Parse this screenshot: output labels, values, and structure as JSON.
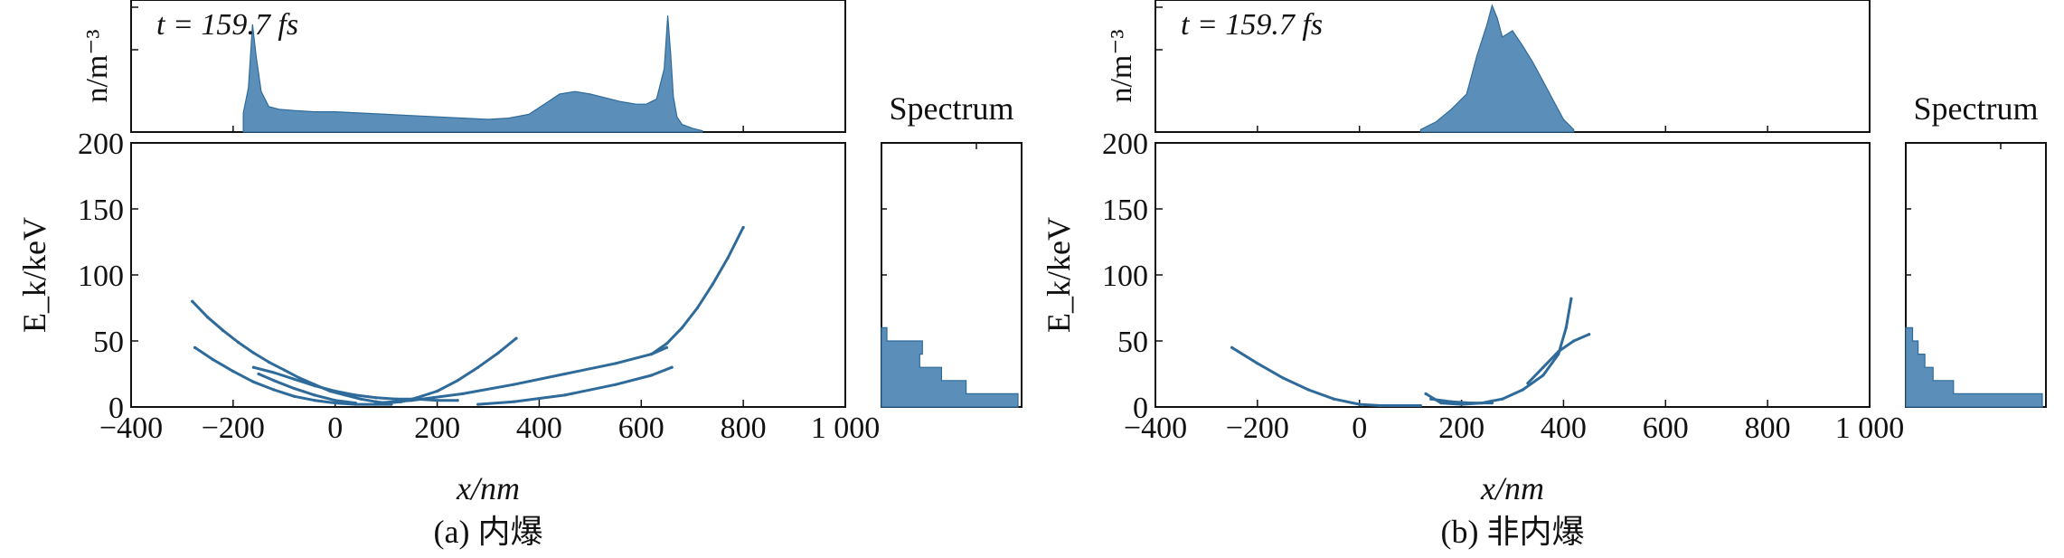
{
  "panels": [
    {
      "id": "a",
      "time_label": "t = 159.7 fs",
      "density_ylabel": "n/m⁻³",
      "energy_ylabel": "E_k/keV",
      "xlabel": "x/nm",
      "spectrum_label": "Spectrum",
      "caption": "(a) 内爆",
      "xlim": [
        -400,
        1000
      ],
      "x_ticks": [
        "−400",
        "−200",
        "0",
        "200",
        "400",
        "600",
        "800",
        "1 000"
      ],
      "ylim": [
        0,
        200
      ],
      "y_ticks": [
        "0",
        "50",
        "100",
        "150",
        "200"
      ]
    },
    {
      "id": "b",
      "time_label": "t = 159.7 fs",
      "density_ylabel": "n/m⁻³",
      "energy_ylabel": "E_k/keV",
      "xlabel": "x/nm",
      "spectrum_label": "Spectrum",
      "caption": "(b) 非内爆",
      "xlim": [
        -400,
        1000
      ],
      "x_ticks": [
        "−400",
        "−200",
        "0",
        "200",
        "400",
        "600",
        "800",
        "1 000"
      ],
      "ylim": [
        0,
        200
      ],
      "y_ticks": [
        "0",
        "50",
        "100",
        "150",
        "200"
      ]
    }
  ],
  "chart_data": [
    {
      "panel": "a",
      "type": "scatter",
      "xlim": [
        -400,
        1000
      ],
      "ylim": [
        0,
        200
      ],
      "series": [
        {
          "x": [
            -280,
            -250,
            -220,
            -190,
            -160,
            -130,
            -100,
            -70,
            -40,
            -10,
            20,
            50,
            80,
            100,
            130,
            160,
            200,
            240,
            280,
            320,
            355
          ],
          "y": [
            80,
            68,
            58,
            49,
            41,
            34,
            28,
            22,
            17,
            12,
            9,
            6,
            4,
            3,
            4,
            7,
            12,
            20,
            30,
            41,
            52
          ]
        },
        {
          "x": [
            -275,
            -240,
            -200,
            -160,
            -120,
            -80,
            -40,
            0,
            40,
            80,
            110
          ],
          "y": [
            45,
            36,
            27,
            19,
            13,
            8,
            5,
            3,
            2,
            2,
            2
          ]
        },
        {
          "x": [
            -160,
            -120,
            -80,
            -40,
            0,
            40,
            80,
            120,
            160,
            200,
            240
          ],
          "y": [
            30,
            26,
            21,
            16,
            12,
            9,
            7,
            6,
            6,
            5,
            5
          ]
        },
        {
          "x": [
            -150,
            -120,
            -80,
            -40,
            0,
            40
          ],
          "y": [
            25,
            20,
            14,
            9,
            5,
            3
          ]
        },
        {
          "x": [
            80,
            150,
            250,
            350,
            450,
            550,
            620,
            650
          ],
          "y": [
            3,
            5,
            10,
            17,
            25,
            33,
            40,
            45
          ]
        },
        {
          "x": [
            280,
            350,
            450,
            550,
            620,
            660
          ],
          "y": [
            2,
            4,
            9,
            17,
            24,
            30
          ]
        },
        {
          "x": [
            620,
            650,
            680,
            710,
            740,
            770,
            800
          ],
          "y": [
            40,
            48,
            60,
            75,
            93,
            113,
            136
          ]
        }
      ],
      "density_profile": {
        "x": [
          -180,
          -170,
          -162,
          -155,
          -145,
          -130,
          -110,
          -80,
          -40,
          0,
          50,
          100,
          150,
          200,
          250,
          300,
          340,
          380,
          410,
          440,
          470,
          500,
          530,
          560,
          590,
          610,
          630,
          645,
          652,
          658,
          663,
          670,
          680,
          700,
          720
        ],
        "y": [
          0.15,
          0.35,
          0.85,
          0.6,
          0.32,
          0.2,
          0.18,
          0.17,
          0.16,
          0.16,
          0.15,
          0.14,
          0.13,
          0.12,
          0.11,
          0.1,
          0.11,
          0.14,
          0.22,
          0.3,
          0.32,
          0.3,
          0.27,
          0.24,
          0.22,
          0.22,
          0.26,
          0.5,
          0.92,
          0.6,
          0.28,
          0.12,
          0.06,
          0.03,
          0.01
        ]
      },
      "spectrum": {
        "bins": [
          0,
          10,
          20,
          30,
          40,
          50,
          60
        ],
        "counts": [
          1.0,
          0.62,
          0.44,
          0.28,
          0.3,
          0.04
        ]
      }
    },
    {
      "panel": "b",
      "type": "scatter",
      "xlim": [
        -400,
        1000
      ],
      "ylim": [
        0,
        200
      ],
      "series": [
        {
          "x": [
            -250,
            -200,
            -150,
            -100,
            -50,
            0,
            40,
            80,
            120
          ],
          "y": [
            45,
            33,
            22,
            13,
            6,
            2,
            1,
            1,
            1
          ]
        },
        {
          "x": [
            130,
            160,
            200,
            240,
            280,
            320,
            360,
            390,
            405,
            415
          ],
          "y": [
            10,
            3,
            2,
            3,
            6,
            13,
            24,
            40,
            60,
            82
          ]
        },
        {
          "x": [
            330,
            360,
            390,
            420,
            450
          ],
          "y": [
            18,
            30,
            42,
            50,
            55
          ]
        },
        {
          "x": [
            140,
            180,
            220,
            260
          ],
          "y": [
            6,
            4,
            3,
            3
          ]
        }
      ],
      "density_profile": {
        "x": [
          120,
          150,
          180,
          210,
          230,
          250,
          260,
          270,
          280,
          300,
          320,
          340,
          360,
          380,
          400,
          420
        ],
        "y": [
          0.02,
          0.08,
          0.18,
          0.3,
          0.6,
          0.85,
          1.0,
          0.9,
          0.75,
          0.8,
          0.68,
          0.55,
          0.4,
          0.25,
          0.1,
          0.02
        ]
      },
      "spectrum": {
        "bins": [
          0,
          10,
          20,
          30,
          40,
          50,
          60
        ],
        "counts": [
          1.0,
          0.35,
          0.2,
          0.14,
          0.09,
          0.05
        ]
      }
    }
  ],
  "colors": {
    "data": "#2f6b9a",
    "fill": "#5b8fb9",
    "axis": "#111111"
  }
}
